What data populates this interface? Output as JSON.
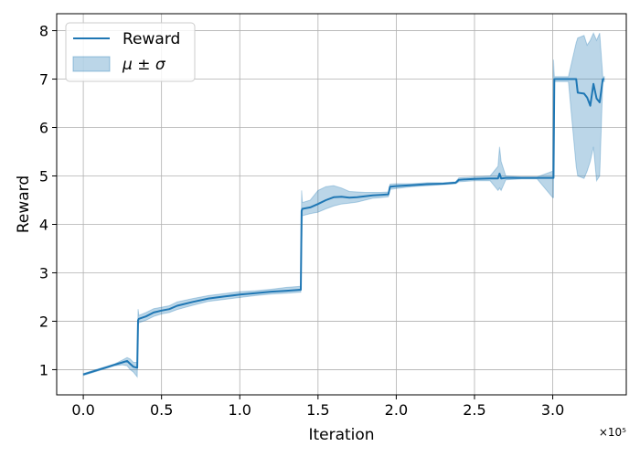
{
  "chart_data": {
    "type": "line",
    "title": "",
    "xlabel": "Iteration",
    "ylabel": "Reward",
    "x_multiplier": "×10⁵",
    "xlim": [
      -0.17,
      3.47
    ],
    "ylim": [
      0.48,
      8.35
    ],
    "xticks": [
      0.0,
      0.5,
      1.0,
      1.5,
      2.0,
      2.5,
      3.0
    ],
    "xtick_labels": [
      "0.0",
      "0.5",
      "1.0",
      "1.5",
      "2.0",
      "2.5",
      "3.0"
    ],
    "yticks": [
      1,
      2,
      3,
      4,
      5,
      6,
      7,
      8
    ],
    "ytick_labels": [
      "1",
      "2",
      "3",
      "4",
      "5",
      "6",
      "7",
      "8"
    ],
    "grid": true,
    "legend_position": "top-left",
    "colors": {
      "line": "#1f77b4",
      "band": "#1f77b4",
      "grid": "#b0b0b0"
    },
    "legend": [
      {
        "label": "Reward",
        "kind": "line"
      },
      {
        "label": "μ ± σ",
        "kind": "band"
      }
    ],
    "series": [
      {
        "name": "Reward",
        "x": [
          0.0,
          0.05,
          0.1,
          0.15,
          0.2,
          0.25,
          0.28,
          0.3,
          0.32,
          0.345,
          0.35,
          0.355,
          0.4,
          0.45,
          0.5,
          0.55,
          0.6,
          0.7,
          0.8,
          0.9,
          1.0,
          1.1,
          1.2,
          1.3,
          1.39,
          1.395,
          1.4,
          1.45,
          1.5,
          1.55,
          1.6,
          1.65,
          1.7,
          1.75,
          1.8,
          1.85,
          1.9,
          1.95,
          1.96,
          2.0,
          2.1,
          2.2,
          2.3,
          2.38,
          2.4,
          2.5,
          2.6,
          2.65,
          2.66,
          2.67,
          2.7,
          2.8,
          2.9,
          3.0,
          3.005,
          3.01,
          3.05,
          3.1,
          3.15,
          3.16,
          3.2,
          3.22,
          3.24,
          3.26,
          3.28,
          3.3,
          3.32,
          3.33
        ],
        "y": [
          0.9,
          0.95,
          1.0,
          1.05,
          1.1,
          1.15,
          1.18,
          1.12,
          1.06,
          1.04,
          2.02,
          2.05,
          2.1,
          2.18,
          2.22,
          2.25,
          2.32,
          2.4,
          2.47,
          2.51,
          2.55,
          2.58,
          2.61,
          2.63,
          2.65,
          4.28,
          4.32,
          4.35,
          4.42,
          4.5,
          4.56,
          4.57,
          4.55,
          4.56,
          4.58,
          4.6,
          4.61,
          4.62,
          4.78,
          4.79,
          4.81,
          4.83,
          4.84,
          4.86,
          4.92,
          4.94,
          4.95,
          4.95,
          5.05,
          4.95,
          4.96,
          4.96,
          4.96,
          4.96,
          4.96,
          7.0,
          7.0,
          7.0,
          7.0,
          6.72,
          6.7,
          6.62,
          6.45,
          6.9,
          6.6,
          6.52,
          7.0,
          7.0
        ]
      },
      {
        "name": "μ ± σ",
        "x": [
          0.0,
          0.05,
          0.1,
          0.15,
          0.2,
          0.25,
          0.28,
          0.3,
          0.32,
          0.345,
          0.35,
          0.355,
          0.4,
          0.45,
          0.5,
          0.55,
          0.6,
          0.7,
          0.8,
          0.9,
          1.0,
          1.1,
          1.2,
          1.3,
          1.39,
          1.395,
          1.4,
          1.45,
          1.5,
          1.55,
          1.6,
          1.65,
          1.7,
          1.75,
          1.8,
          1.85,
          1.9,
          1.95,
          1.96,
          2.0,
          2.1,
          2.2,
          2.3,
          2.38,
          2.4,
          2.5,
          2.6,
          2.65,
          2.66,
          2.67,
          2.7,
          2.8,
          2.9,
          3.0,
          3.005,
          3.01,
          3.05,
          3.1,
          3.15,
          3.16,
          3.2,
          3.22,
          3.24,
          3.26,
          3.28,
          3.3,
          3.32,
          3.33
        ],
        "lower": [
          0.88,
          0.93,
          0.98,
          1.03,
          1.08,
          1.1,
          1.08,
          1.0,
          0.95,
          0.85,
          1.92,
          1.97,
          2.02,
          2.1,
          2.15,
          2.18,
          2.24,
          2.33,
          2.41,
          2.45,
          2.49,
          2.53,
          2.56,
          2.58,
          2.6,
          3.55,
          4.18,
          4.22,
          4.25,
          4.32,
          4.38,
          4.42,
          4.44,
          4.46,
          4.5,
          4.54,
          4.55,
          4.57,
          4.72,
          4.74,
          4.78,
          4.8,
          4.82,
          4.84,
          4.88,
          4.9,
          4.9,
          4.7,
          4.75,
          4.7,
          4.92,
          4.94,
          4.94,
          4.55,
          4.55,
          6.95,
          6.95,
          6.95,
          5.2,
          5.0,
          4.95,
          5.1,
          5.3,
          5.6,
          4.9,
          5.0,
          6.95,
          6.95
        ],
        "upper": [
          0.92,
          0.97,
          1.02,
          1.07,
          1.12,
          1.2,
          1.25,
          1.22,
          1.15,
          1.15,
          2.25,
          2.12,
          2.18,
          2.26,
          2.29,
          2.32,
          2.4,
          2.47,
          2.53,
          2.57,
          2.61,
          2.63,
          2.66,
          2.7,
          2.72,
          4.7,
          4.45,
          4.5,
          4.7,
          4.78,
          4.8,
          4.75,
          4.68,
          4.67,
          4.66,
          4.66,
          4.66,
          4.67,
          4.83,
          4.84,
          4.84,
          4.86,
          4.86,
          4.88,
          4.96,
          4.98,
          5.0,
          5.2,
          5.6,
          5.3,
          5.0,
          4.98,
          4.98,
          5.1,
          7.4,
          7.05,
          7.05,
          7.05,
          7.75,
          7.85,
          7.9,
          7.7,
          7.8,
          7.95,
          7.8,
          7.95,
          7.05,
          7.05
        ]
      }
    ]
  }
}
